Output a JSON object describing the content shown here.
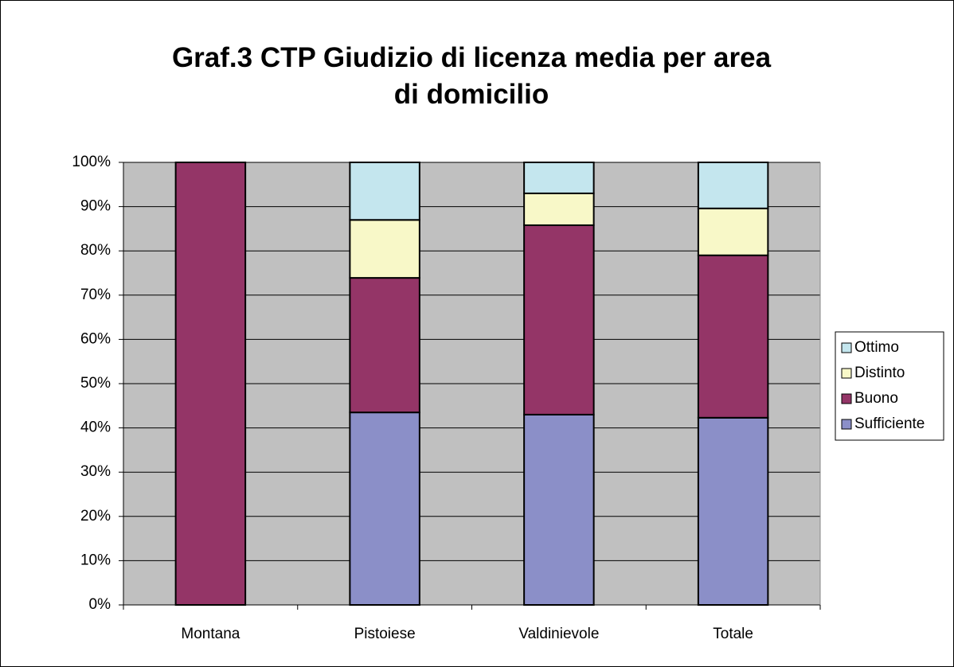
{
  "chart_data": {
    "type": "stacked_bar",
    "title": "Graf.3 CTP Giudizio di licenza media per area di domicilio",
    "categories": [
      "Montana",
      "Pistoiese",
      "Valdinievole",
      "Totale"
    ],
    "series": [
      {
        "name": "Sufficiente",
        "color": "#8b8fc8",
        "values": [
          0,
          43.5,
          43.0,
          42.3
        ]
      },
      {
        "name": "Buono",
        "color": "#943567",
        "values": [
          100,
          30.4,
          42.8,
          36.7
        ]
      },
      {
        "name": "Distinto",
        "color": "#f8f8c8",
        "values": [
          0,
          13.1,
          7.2,
          10.6
        ]
      },
      {
        "name": "Ottimo",
        "color": "#c4e6ee",
        "values": [
          0,
          13.0,
          7.0,
          10.4
        ]
      }
    ],
    "ylim": [
      0,
      100
    ],
    "yticks": [
      {
        "value": 0,
        "label": "0%"
      },
      {
        "value": 10,
        "label": "10%"
      },
      {
        "value": 20,
        "label": "20%"
      },
      {
        "value": 30,
        "label": "30%"
      },
      {
        "value": 40,
        "label": "40%"
      },
      {
        "value": 50,
        "label": "50%"
      },
      {
        "value": 60,
        "label": "60%"
      },
      {
        "value": 70,
        "label": "70%"
      },
      {
        "value": 80,
        "label": "80%"
      },
      {
        "value": 90,
        "label": "90%"
      },
      {
        "value": 100,
        "label": "100%"
      }
    ],
    "grid": true,
    "legend": "right"
  }
}
